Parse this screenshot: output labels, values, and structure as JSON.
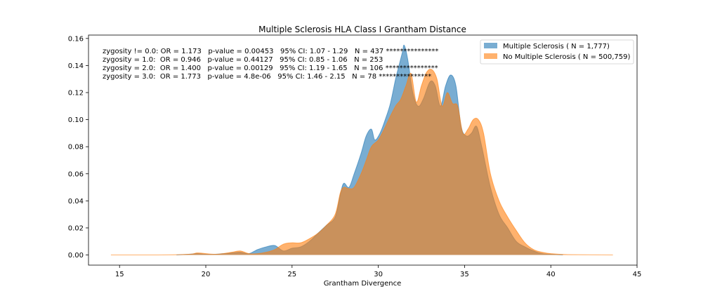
{
  "chart_data": {
    "type": "area",
    "title": "Multiple Sclerosis HLA Class I Grantham Distance",
    "xlabel": "Grantham Divergence",
    "ylabel": "",
    "xlim": [
      13.2,
      45.0
    ],
    "ylim": [
      -0.0075,
      0.1625
    ],
    "xticks": [
      15,
      20,
      25,
      30,
      35,
      40,
      45
    ],
    "yticks": [
      0.0,
      0.02,
      0.04,
      0.06,
      0.08,
      0.1,
      0.12,
      0.14,
      0.16
    ],
    "xtick_labels": [
      "15",
      "20",
      "25",
      "30",
      "35",
      "40",
      "45"
    ],
    "ytick_labels": [
      "0.00",
      "0.02",
      "0.04",
      "0.06",
      "0.08",
      "0.10",
      "0.12",
      "0.14",
      "0.16"
    ],
    "legend_position": "top-right",
    "grid": false,
    "annotations": [
      "zygosity != 0.0: OR = 1.173   p-value = 0.00453   95% CI: 1.07 - 1.29   N = 437 ***************",
      "zygosity = 1.0:  OR = 0.946   p-value = 0.44127   95% CI: 0.85 - 1.06   N = 253",
      "zygosity = 2.0:  OR = 1.400   p-value = 0.00129   95% CI: 1.19 - 1.65   N = 106 ***************",
      "zygosity = 3.0:  OR = 1.773   p-value = 4.8e-06   95% CI: 1.46 - 2.15   N = 78 ***************"
    ],
    "series": [
      {
        "name": "Multiple Sclerosis ( N = 1,777)",
        "color": "#1f77b4",
        "opacity": 0.6,
        "x": [
          18.3,
          19.0,
          19.5,
          20.0,
          20.5,
          21.0,
          21.5,
          22.0,
          22.5,
          23.0,
          23.5,
          24.0,
          24.5,
          25.0,
          25.5,
          26.0,
          26.5,
          27.0,
          27.5,
          27.8,
          28.0,
          28.3,
          28.6,
          29.0,
          29.3,
          29.6,
          29.8,
          30.1,
          30.4,
          30.7,
          31.0,
          31.2,
          31.4,
          31.5,
          31.7,
          32.0,
          32.3,
          32.6,
          33.0,
          33.3,
          33.6,
          33.9,
          34.2,
          34.5,
          34.8,
          35.1,
          35.4,
          35.7,
          36.0,
          36.5,
          37.0,
          37.5,
          38.0,
          38.5,
          39.0,
          39.5,
          40.0,
          40.7
        ],
        "y": [
          0.0,
          0.0005,
          0.001,
          0.0005,
          0.0005,
          0.001,
          0.0015,
          0.002,
          0.001,
          0.004,
          0.006,
          0.007,
          0.003,
          0.005,
          0.006,
          0.01,
          0.016,
          0.022,
          0.028,
          0.045,
          0.053,
          0.05,
          0.06,
          0.075,
          0.088,
          0.093,
          0.085,
          0.09,
          0.1,
          0.112,
          0.13,
          0.14,
          0.15,
          0.155,
          0.145,
          0.12,
          0.11,
          0.115,
          0.128,
          0.125,
          0.11,
          0.125,
          0.133,
          0.125,
          0.095,
          0.088,
          0.09,
          0.095,
          0.08,
          0.05,
          0.03,
          0.02,
          0.01,
          0.006,
          0.003,
          0.001,
          0.0005,
          0.0
        ]
      },
      {
        "name": "No Multiple Sclerosis ( N = 500,759)",
        "color": "#ff7f0e",
        "opacity": 0.6,
        "x": [
          14.5,
          17.0,
          19.0,
          19.5,
          20.0,
          20.5,
          21.0,
          21.5,
          22.0,
          22.5,
          23.0,
          23.5,
          24.0,
          24.5,
          25.0,
          25.5,
          26.0,
          26.5,
          27.0,
          27.5,
          27.8,
          28.0,
          28.3,
          28.6,
          29.0,
          29.3,
          29.6,
          30.0,
          30.3,
          30.6,
          31.0,
          31.3,
          31.6,
          31.9,
          32.2,
          32.5,
          32.8,
          33.1,
          33.4,
          33.7,
          34.0,
          34.3,
          34.6,
          34.9,
          35.2,
          35.5,
          35.8,
          36.1,
          36.5,
          37.0,
          37.5,
          38.0,
          38.5,
          39.0,
          39.5,
          40.0,
          41.0,
          43.6
        ],
        "y": [
          0.0,
          0.0,
          0.0005,
          0.0015,
          0.001,
          0.0005,
          0.001,
          0.002,
          0.003,
          0.001,
          0.001,
          0.002,
          0.004,
          0.008,
          0.009,
          0.009,
          0.012,
          0.016,
          0.022,
          0.03,
          0.046,
          0.05,
          0.049,
          0.05,
          0.06,
          0.07,
          0.08,
          0.085,
          0.092,
          0.1,
          0.11,
          0.115,
          0.125,
          0.134,
          0.113,
          0.125,
          0.135,
          0.137,
          0.13,
          0.11,
          0.12,
          0.112,
          0.11,
          0.09,
          0.093,
          0.1,
          0.1,
          0.09,
          0.06,
          0.04,
          0.028,
          0.018,
          0.009,
          0.004,
          0.002,
          0.001,
          0.0003,
          0.0
        ]
      }
    ]
  }
}
